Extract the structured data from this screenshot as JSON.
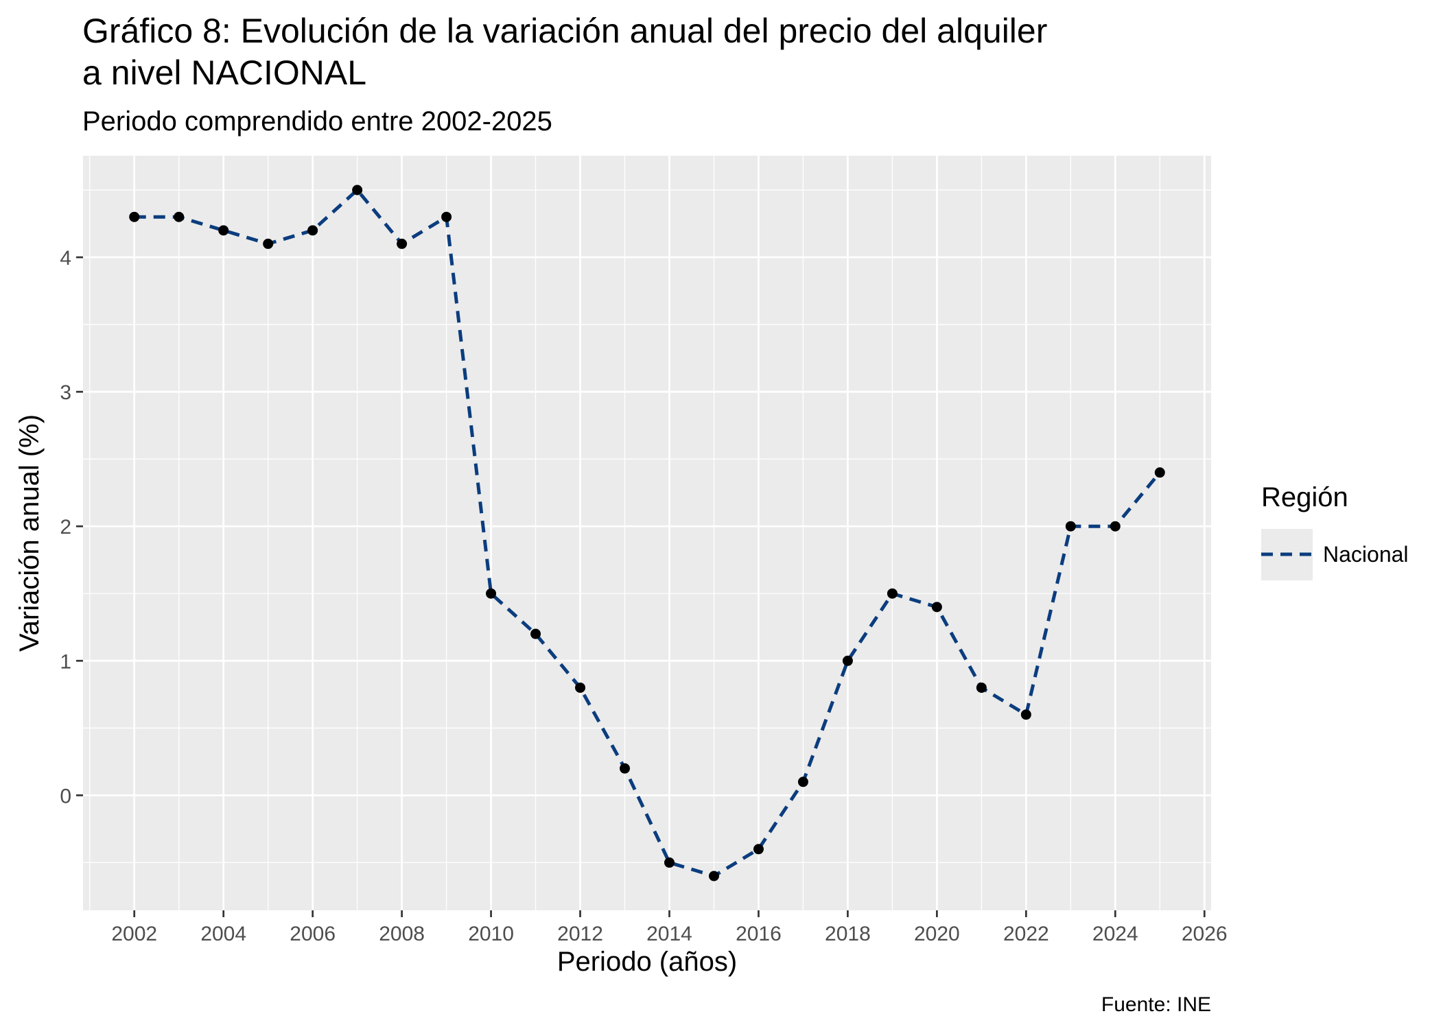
{
  "chart_data": {
    "type": "line",
    "title_line1": "Gráfico 8: Evolución de la variación anual del precio del alquiler",
    "title_line2": "a nivel NACIONAL",
    "subtitle": "Periodo comprendido entre 2002-2025",
    "xlabel": "Periodo (años)",
    "ylabel": "Variación anual (%)",
    "caption": "Fuente: INE",
    "xlim": [
      2000.85,
      2026.15
    ],
    "ylim": [
      -0.855,
      4.755
    ],
    "x_ticks": [
      2002,
      2004,
      2006,
      2008,
      2010,
      2012,
      2014,
      2016,
      2018,
      2020,
      2022,
      2024,
      2026
    ],
    "y_ticks": [
      0,
      1,
      2,
      3,
      4
    ],
    "grid": true,
    "legend": {
      "title": "Región",
      "position": "right"
    },
    "series": [
      {
        "name": "Nacional",
        "color": "#0b3d7e",
        "line_style": "dashed",
        "point_color": "#000000",
        "x": [
          2002,
          2003,
          2004,
          2005,
          2006,
          2007,
          2008,
          2009,
          2010,
          2011,
          2012,
          2013,
          2014,
          2015,
          2016,
          2017,
          2018,
          2019,
          2020,
          2021,
          2022,
          2023,
          2024,
          2025
        ],
        "values": [
          4.3,
          4.3,
          4.2,
          4.1,
          4.2,
          4.5,
          4.1,
          4.3,
          1.5,
          1.2,
          0.8,
          0.2,
          -0.5,
          -0.6,
          -0.4,
          0.1,
          1.0,
          1.5,
          1.4,
          0.8,
          0.6,
          2.0,
          2.0,
          2.4
        ]
      }
    ],
    "panel_color": "#ebebeb",
    "grid_color": "#ffffff"
  }
}
